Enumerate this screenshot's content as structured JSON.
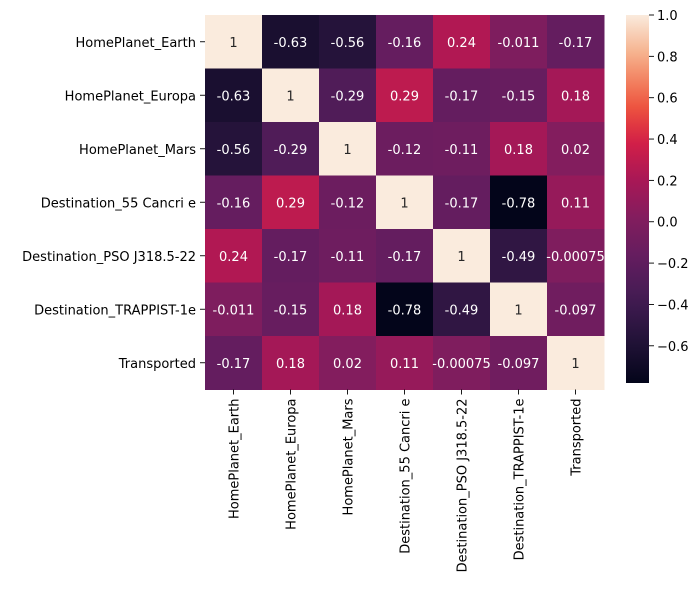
{
  "chart_data": {
    "type": "heatmap",
    "title": "",
    "xlabel": "",
    "ylabel": "",
    "rows": [
      "HomePlanet_Earth",
      "HomePlanet_Europa",
      "HomePlanet_Mars",
      "Destination_55 Cancri e",
      "Destination_PSO J318.5-22",
      "Destination_TRAPPIST-1e",
      "Transported"
    ],
    "columns": [
      "HomePlanet_Earth",
      "HomePlanet_Europa",
      "HomePlanet_Mars",
      "Destination_55 Cancri e",
      "Destination_PSO J318.5-22",
      "Destination_TRAPPIST-1e",
      "Transported"
    ],
    "values": [
      [
        1,
        -0.63,
        -0.56,
        -0.16,
        0.24,
        -0.011,
        -0.17
      ],
      [
        -0.63,
        1,
        -0.29,
        0.29,
        -0.17,
        -0.15,
        0.18
      ],
      [
        -0.56,
        -0.29,
        1,
        -0.12,
        -0.11,
        0.18,
        0.02
      ],
      [
        -0.16,
        0.29,
        -0.12,
        1,
        -0.17,
        -0.78,
        0.11
      ],
      [
        0.24,
        -0.17,
        -0.11,
        -0.17,
        1,
        -0.49,
        -0.00075
      ],
      [
        -0.011,
        -0.15,
        0.18,
        -0.78,
        -0.49,
        1,
        -0.097
      ],
      [
        -0.17,
        0.18,
        0.02,
        0.11,
        -0.00075,
        -0.097,
        1
      ]
    ],
    "cell_labels": [
      [
        "1",
        "-0.63",
        "-0.56",
        "-0.16",
        "0.24",
        "-0.011",
        "-0.17"
      ],
      [
        "-0.63",
        "1",
        "-0.29",
        "0.29",
        "-0.17",
        "-0.15",
        "0.18"
      ],
      [
        "-0.56",
        "-0.29",
        "1",
        "-0.12",
        "-0.11",
        "0.18",
        "0.02"
      ],
      [
        "-0.16",
        "0.29",
        "-0.12",
        "1",
        "-0.17",
        "-0.78",
        "0.11"
      ],
      [
        "0.24",
        "-0.17",
        "-0.11",
        "-0.17",
        "1",
        "-0.49",
        "-0.00075"
      ],
      [
        "-0.011",
        "-0.15",
        "0.18",
        "-0.78",
        "-0.49",
        "1",
        "-0.097"
      ],
      [
        "-0.17",
        "0.18",
        "0.02",
        "0.11",
        "-0.00075",
        "-0.097",
        "1"
      ]
    ],
    "colorbar": {
      "vmin": -0.78,
      "vmax": 1,
      "ticks": [
        1.0,
        0.8,
        0.6,
        0.4,
        0.2,
        0.0,
        -0.2,
        -0.4,
        -0.6
      ],
      "tick_labels": [
        "1.0",
        "0.8",
        "0.6",
        "0.4",
        "0.2",
        "0.0",
        "−0.2",
        "−0.4",
        "−0.6"
      ],
      "colormap": "rocket"
    },
    "grid": false,
    "legend": "colorbar-right"
  }
}
